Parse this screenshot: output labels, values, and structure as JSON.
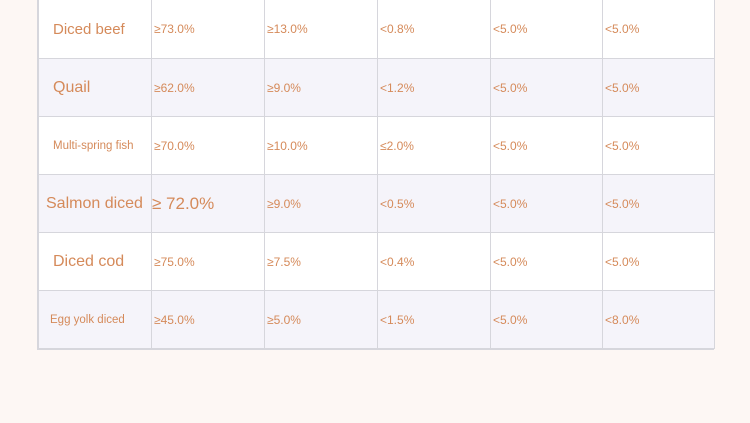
{
  "rows": [
    {
      "name": "Diced beef",
      "values": [
        "≥73.0%",
        "≥13.0%",
        "<0.8%",
        "<5.0%",
        "<5.0%"
      ]
    },
    {
      "name": "Quail",
      "values": [
        "≥62.0%",
        "≥9.0%",
        "<1.2%",
        "<5.0%",
        "<5.0%"
      ]
    },
    {
      "name": "Multi-spring fish",
      "values": [
        "≥70.0%",
        "≥10.0%",
        "≤2.0%",
        "<5.0%",
        "<5.0%"
      ]
    },
    {
      "name": "Salmon diced",
      "values": [
        "≥ 72.0%",
        "≥9.0%",
        "<0.5%",
        "<5.0%",
        "<5.0%"
      ]
    },
    {
      "name": "Diced cod",
      "values": [
        "≥75.0%",
        "≥7.5%",
        "<0.4%",
        "<5.0%",
        "<5.0%"
      ]
    },
    {
      "name": "Egg yolk diced",
      "values": [
        "≥45.0%",
        "≥5.0%",
        "<1.5%",
        "<5.0%",
        "<8.0%"
      ]
    }
  ]
}
